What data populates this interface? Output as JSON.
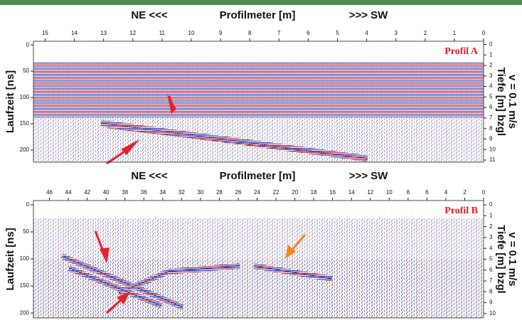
{
  "chart_data": [
    {
      "type": "radargram",
      "direction_left": "NE <<<",
      "title": "Profilmeter [m]",
      "direction_right": ">>> SW",
      "label": "Profil A",
      "ylabel": "Laufzeit [ns]",
      "y2label": [
        "Tiefe [m] bzgl",
        "v = 0.1 m/s"
      ],
      "xlim": [
        15.4,
        0
      ],
      "xticks": [
        15,
        14,
        13,
        12,
        11,
        10,
        9,
        8,
        7,
        6,
        5,
        4,
        3,
        2,
        1,
        0
      ],
      "ylim": [
        -7,
        223
      ],
      "yticks": [
        0,
        50,
        100,
        150,
        200
      ],
      "y2lim": [
        -0.3,
        11.2
      ],
      "y2ticks": [
        0,
        1,
        2,
        3,
        4,
        5,
        6,
        7,
        8,
        9,
        10,
        11
      ]
    },
    {
      "type": "radargram",
      "direction_left": "NE <<<",
      "title": "Profilmeter [m]",
      "direction_right": ">>> SW",
      "label": "Profil B",
      "ylabel": "Laufzeit [ns]",
      "y2label": [
        "Tiefe [m] bzgl",
        "v = 0.1 m/s"
      ],
      "xlim": [
        47.7,
        0
      ],
      "xticks": [
        46,
        44,
        42,
        40,
        38,
        36,
        34,
        32,
        30,
        28,
        26,
        24,
        22,
        20,
        18,
        16,
        14,
        12,
        10,
        8,
        6,
        4,
        2,
        0
      ],
      "ylim": [
        -8,
        209
      ],
      "yticks": [
        0,
        50,
        100,
        150,
        200
      ],
      "y2lim": [
        -0.4,
        10.4
      ],
      "y2ticks": [
        0,
        1,
        2,
        3,
        4,
        5,
        6,
        7,
        8,
        9,
        10
      ]
    }
  ]
}
